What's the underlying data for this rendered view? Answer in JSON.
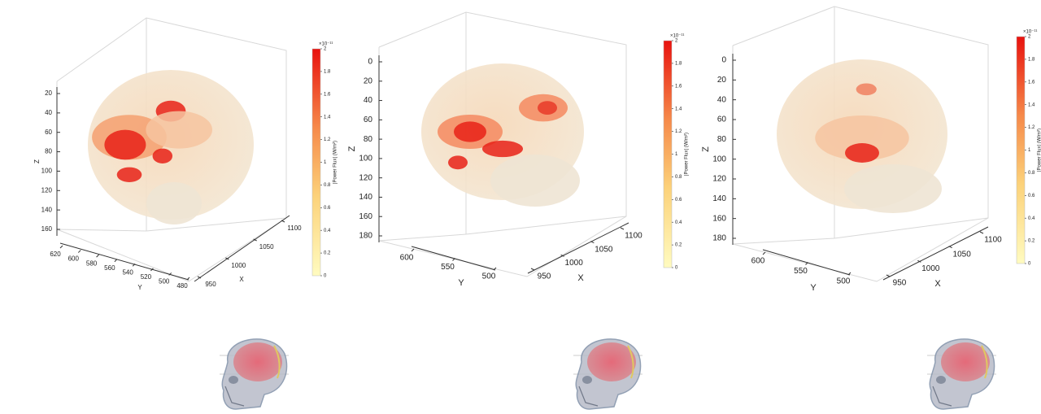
{
  "panels": [
    {
      "z_label": "Z",
      "y_label": "Y",
      "x_label": "X",
      "z_ticks": [
        20,
        40,
        60,
        80,
        100,
        120,
        140,
        160
      ],
      "y_ticks": [
        620,
        600,
        580,
        560,
        540,
        520,
        500,
        480
      ],
      "x_ticks": [
        950,
        1000,
        1050,
        1100
      ],
      "colorbar": {
        "exponent": "×10⁻¹¹",
        "label": "|Power Flux| (W/m²)",
        "lim": [
          0,
          2
        ],
        "ticks": [
          0,
          0.2,
          0.4,
          0.6,
          0.8,
          1,
          1.2,
          1.4,
          1.6,
          1.8,
          2
        ]
      }
    },
    {
      "z_label": "Z",
      "y_label": "Y",
      "x_label": "X",
      "z_ticks": [
        0,
        20,
        40,
        60,
        80,
        100,
        120,
        140,
        160,
        180
      ],
      "y_ticks": [
        600,
        550,
        500
      ],
      "x_ticks": [
        950,
        1000,
        1050,
        1100
      ],
      "colorbar": {
        "exponent": "×10⁻¹¹",
        "label": "|Power Flux| (W/m²)",
        "lim": [
          0,
          2
        ],
        "ticks": [
          0,
          0.2,
          0.4,
          0.6,
          0.8,
          1,
          1.2,
          1.4,
          1.6,
          1.8,
          2
        ]
      }
    },
    {
      "z_label": "Z",
      "y_label": "Y",
      "x_label": "X",
      "z_ticks": [
        0,
        20,
        40,
        60,
        80,
        100,
        120,
        140,
        160,
        180
      ],
      "y_ticks": [
        600,
        550,
        500
      ],
      "x_ticks": [
        950,
        1000,
        1050,
        1100
      ],
      "colorbar": {
        "exponent": "×10⁻¹¹",
        "label": "|Power Flux| (W/m²)",
        "lim": [
          0,
          2
        ],
        "ticks": [
          0,
          0.2,
          0.4,
          0.6,
          0.8,
          1,
          1.2,
          1.4,
          1.6,
          1.8,
          2
        ]
      }
    }
  ]
}
